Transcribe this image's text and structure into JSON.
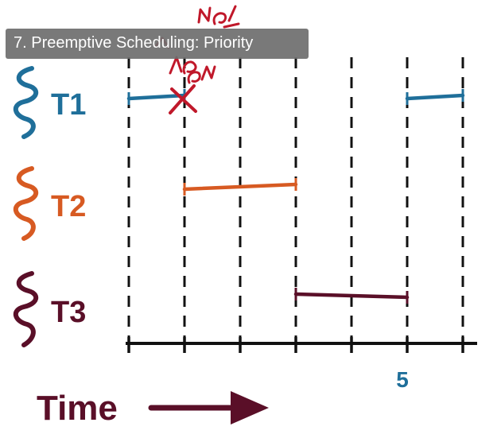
{
  "title": "7. Preemptive Scheduling: Priority",
  "tick_label": "5",
  "time_label": "Time",
  "threads": [
    {
      "label": "T1",
      "color": "#1f6f9a"
    },
    {
      "label": "T2",
      "color": "#d75a22"
    },
    {
      "label": "T3",
      "color": "#5a0f28"
    }
  ],
  "colors": {
    "axis": "#111111",
    "gridline": "#111111",
    "annotation": "#c0182a",
    "arrow": "#5a0f28"
  },
  "timeline": {
    "slot_count": 6,
    "segments": [
      {
        "thread": "T1",
        "start": 0,
        "end": 1
      },
      {
        "thread": "T2",
        "start": 1,
        "end": 3
      },
      {
        "thread": "T3",
        "start": 3,
        "end": 5
      },
      {
        "thread": "T1",
        "start": 5,
        "end": 6
      }
    ],
    "preempt_mark_time": 1
  }
}
